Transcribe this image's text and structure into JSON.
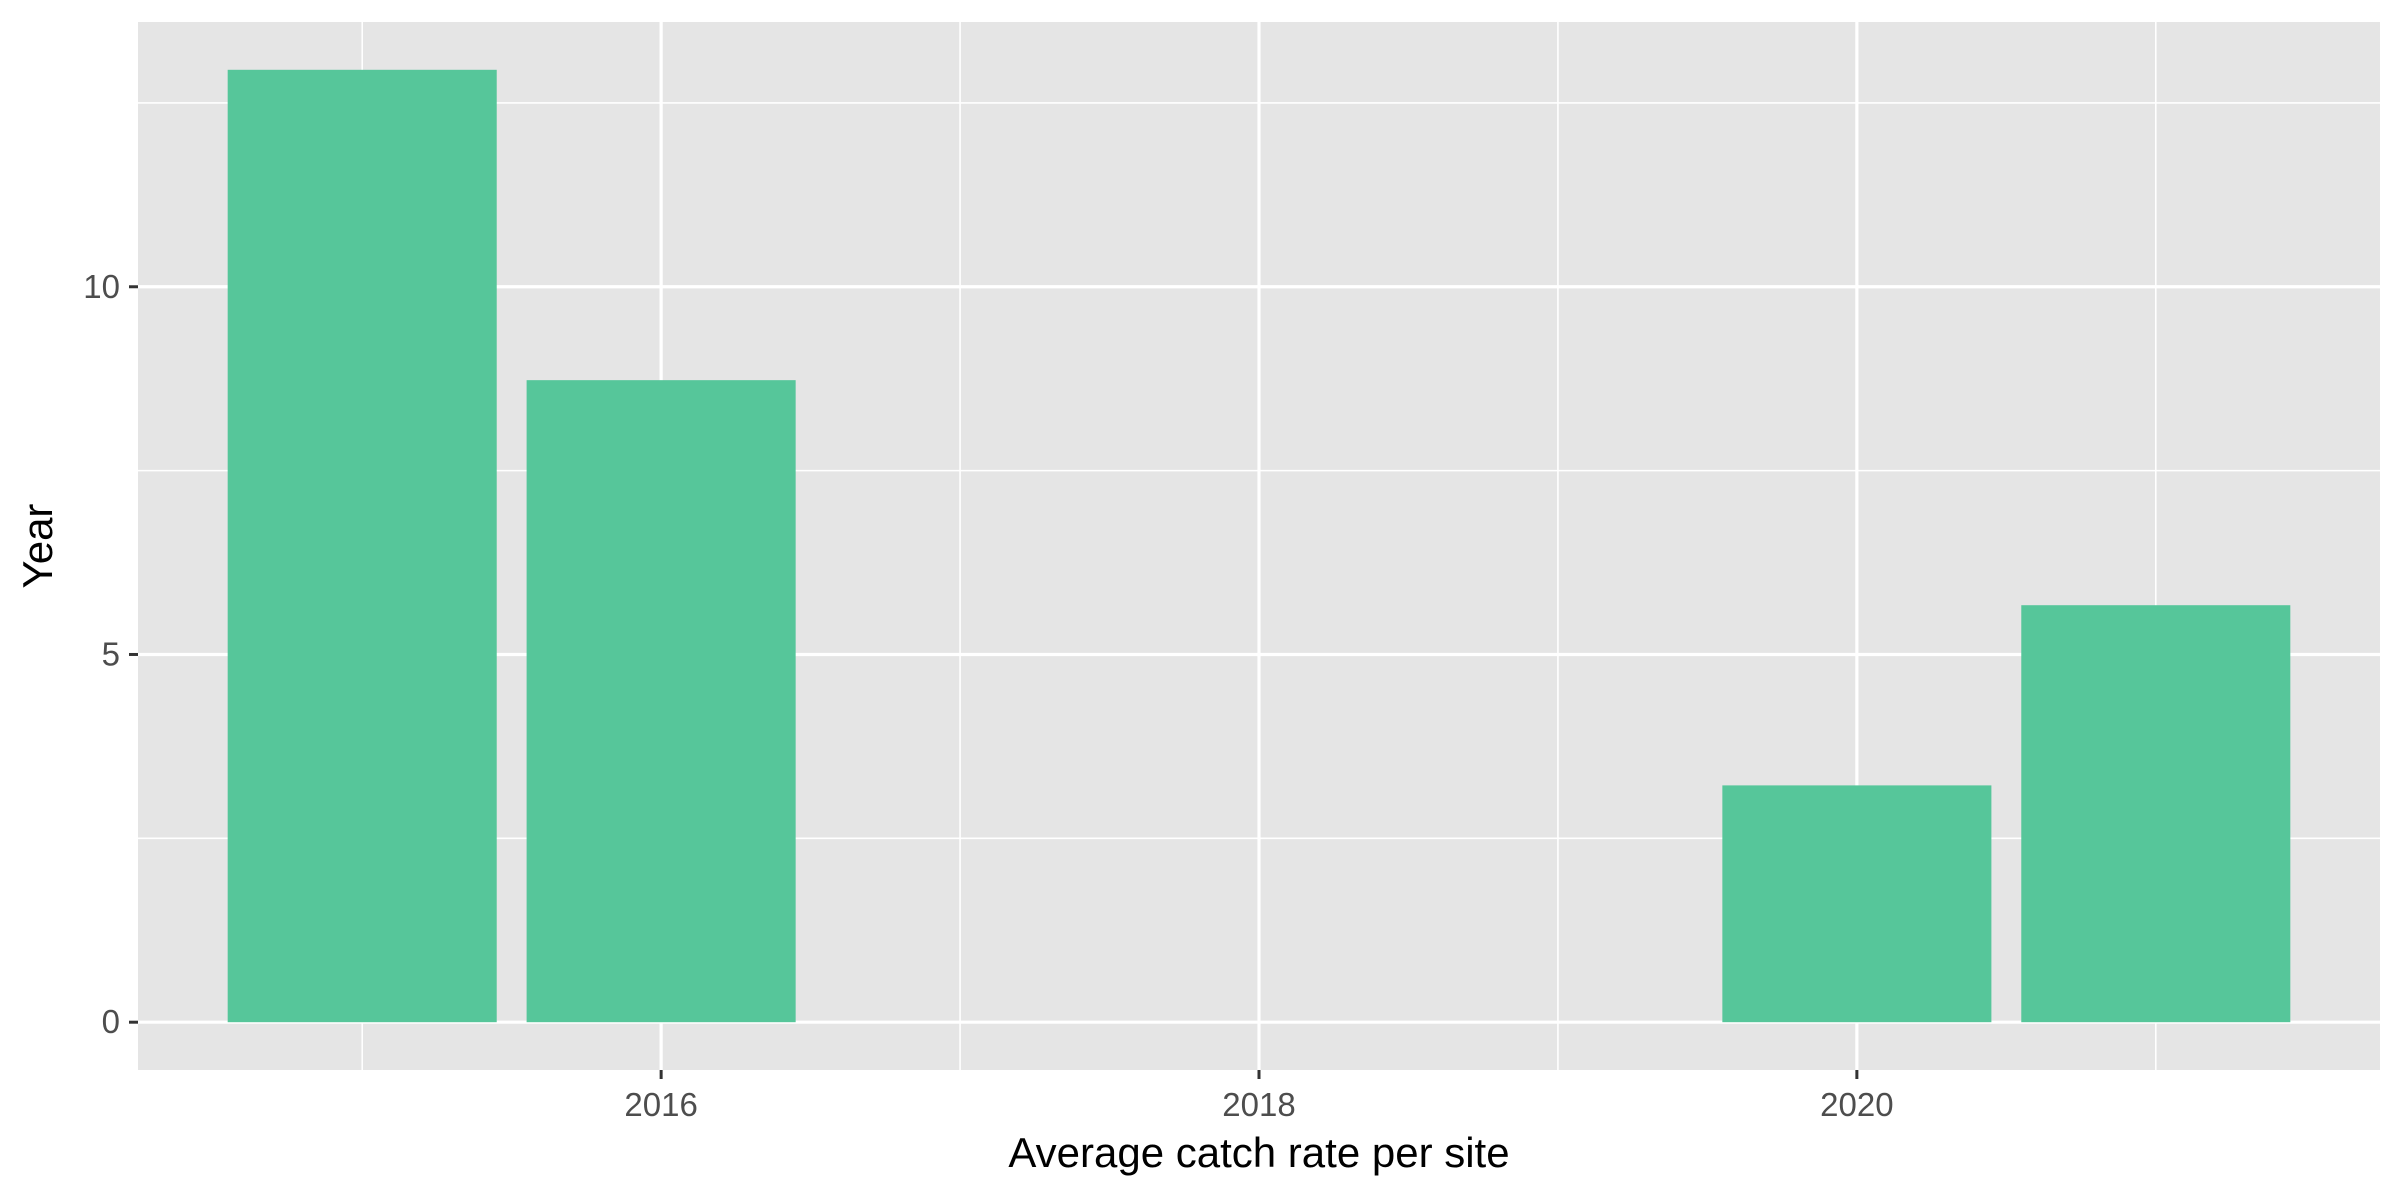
{
  "chart_data": {
    "type": "bar",
    "title": "",
    "xlabel": "Average catch rate per site",
    "ylabel": "Year",
    "x": [
      2015,
      2016,
      2020,
      2021
    ],
    "values": [
      12.95,
      8.73,
      3.22,
      5.67
    ],
    "xlim": [
      2014.25,
      2021.75
    ],
    "ylim": [
      -0.65,
      13.6
    ],
    "x_ticks": [
      2016,
      2018,
      2020
    ],
    "x_tick_labels": [
      "2016",
      "2018",
      "2020"
    ],
    "y_ticks": [
      0,
      5,
      10
    ],
    "y_tick_labels": [
      "0",
      "5",
      "10"
    ],
    "grid": true,
    "bar_color": "#56c69a",
    "panel_background": "#e5e5e5",
    "grid_color": "#ffffff"
  }
}
